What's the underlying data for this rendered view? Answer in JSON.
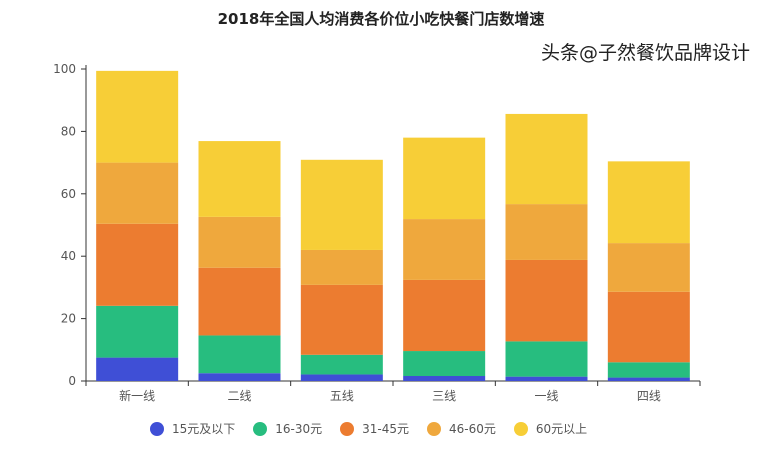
{
  "chart_data": {
    "type": "bar",
    "stacked": true,
    "title": "2018年全国人均消费各价位小吃快餐门店数增速",
    "xlabel": "",
    "ylabel": "",
    "ylim": [
      0,
      100
    ],
    "yticks": [
      0,
      20,
      40,
      60,
      80,
      100
    ],
    "categories": [
      "新一线",
      "二线",
      "五线",
      "三线",
      "一线",
      "四线"
    ],
    "series": [
      {
        "name": "15元及以下",
        "color": "#3f4fd6",
        "values": [
          7.5,
          2.5,
          2.1,
          1.6,
          1.4,
          1.1
        ]
      },
      {
        "name": "16-30元",
        "color": "#27bd7f",
        "values": [
          16.6,
          12.1,
          6.3,
          8.0,
          11.3,
          4.9
        ]
      },
      {
        "name": "31-45元",
        "color": "#ec7c30",
        "values": [
          26.3,
          21.7,
          22.4,
          22.8,
          26.1,
          22.6
        ]
      },
      {
        "name": "46-60元",
        "color": "#efa83d",
        "values": [
          19.6,
          16.3,
          11.2,
          19.5,
          17.9,
          15.6
        ]
      },
      {
        "name": "60元以上",
        "color": "#f7ce37",
        "values": [
          29.4,
          24.3,
          28.9,
          26.1,
          28.9,
          26.2
        ]
      }
    ],
    "legend_position": "bottom",
    "grid": false
  },
  "watermark": "头条@子然餐饮品牌设计"
}
